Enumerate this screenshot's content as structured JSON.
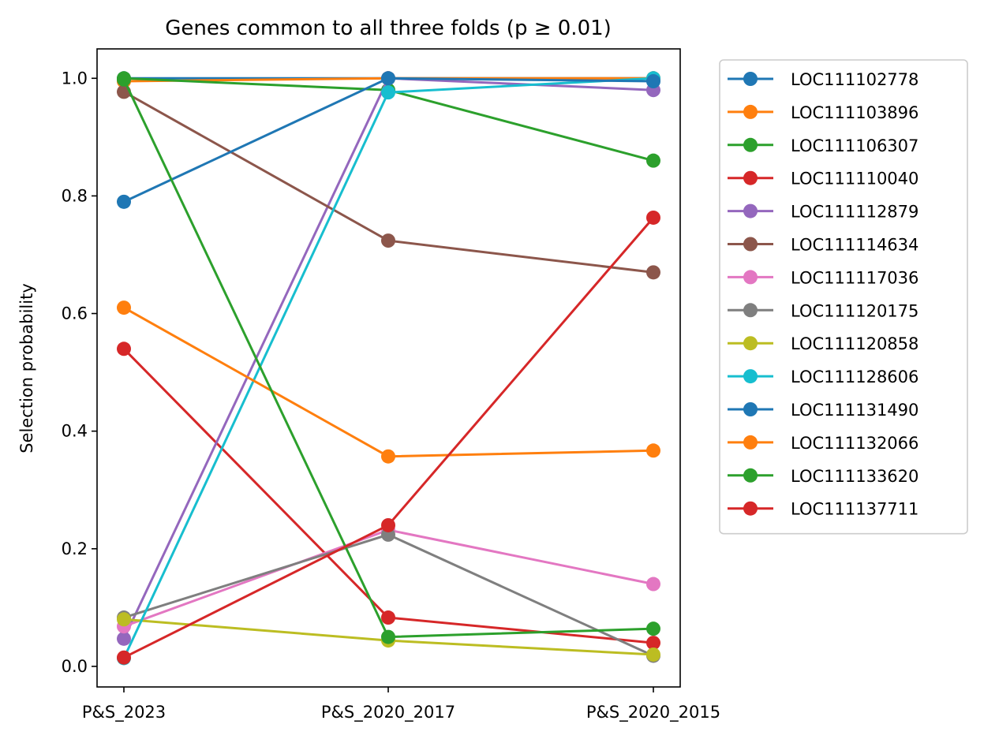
{
  "chart_data": {
    "type": "line",
    "title": "Genes common to all three folds (p ≥ 0.01)",
    "xlabel": "",
    "ylabel": "Selection probability",
    "categories": [
      "P&S_2023",
      "P&S_2020_2017",
      "P&S_2020_2015"
    ],
    "ylim": [
      -0.035,
      1.05
    ],
    "yticks": [
      0.0,
      0.2,
      0.4,
      0.6,
      0.8,
      1.0
    ],
    "ytick_labels": [
      "0.0",
      "0.2",
      "0.4",
      "0.6",
      "0.8",
      "1.0"
    ],
    "grid": false,
    "legend_position": "outside-right-top",
    "series": [
      {
        "name": "LOC111102778",
        "color": "#1f77b4",
        "values": [
          1.0,
          1.0,
          1.0
        ]
      },
      {
        "name": "LOC111103896",
        "color": "#ff7f0e",
        "values": [
          0.995,
          1.0,
          1.0
        ]
      },
      {
        "name": "LOC111106307",
        "color": "#2ca02c",
        "values": [
          1.0,
          0.98,
          0.86
        ]
      },
      {
        "name": "LOC111110040",
        "color": "#d62728",
        "values": [
          0.54,
          0.083,
          0.04
        ]
      },
      {
        "name": "LOC111112879",
        "color": "#9467bd",
        "values": [
          0.047,
          1.0,
          0.98
        ]
      },
      {
        "name": "LOC111114634",
        "color": "#8c564b",
        "values": [
          0.977,
          0.724,
          0.67
        ]
      },
      {
        "name": "LOC111117036",
        "color": "#e377c2",
        "values": [
          0.068,
          0.232,
          0.14
        ]
      },
      {
        "name": "LOC111120175",
        "color": "#7f7f7f",
        "values": [
          0.083,
          0.224,
          0.018
        ]
      },
      {
        "name": "LOC111120858",
        "color": "#bcbd22",
        "values": [
          0.08,
          0.044,
          0.02
        ]
      },
      {
        "name": "LOC111128606",
        "color": "#17becf",
        "values": [
          0.014,
          0.976,
          1.0
        ]
      },
      {
        "name": "LOC111131490",
        "color": "#1f77b4",
        "values": [
          0.79,
          1.0,
          0.995
        ]
      },
      {
        "name": "LOC111132066",
        "color": "#ff7f0e",
        "values": [
          0.61,
          0.357,
          0.367
        ]
      },
      {
        "name": "LOC111133620",
        "color": "#2ca02c",
        "values": [
          0.998,
          0.05,
          0.064
        ]
      },
      {
        "name": "LOC111137711",
        "color": "#d62728",
        "values": [
          0.015,
          0.24,
          0.763
        ]
      }
    ]
  }
}
